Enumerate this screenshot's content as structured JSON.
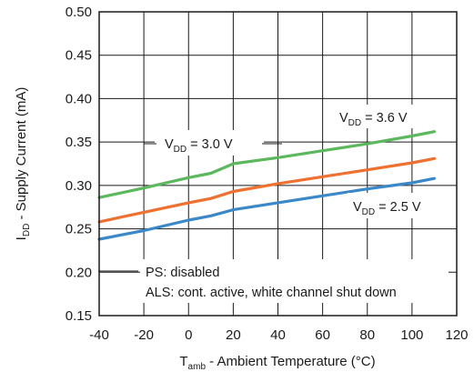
{
  "chart_data": {
    "type": "line",
    "x_axis": {
      "label_main": "T",
      "label_sub": "amb",
      "label_rest": " - Ambient Temperature (°C)",
      "ticks": [
        -40,
        -20,
        0,
        20,
        40,
        60,
        80,
        100,
        120
      ],
      "range": [
        -40,
        120
      ]
    },
    "y_axis": {
      "label_main": "I",
      "label_sub": "DD",
      "label_rest": " - Supply Current (mA)",
      "ticks": [
        0.15,
        0.2,
        0.25,
        0.3,
        0.35,
        0.4,
        0.45,
        0.5
      ],
      "tick_labels": [
        "0.15",
        "0.20",
        "0.25",
        "0.30",
        "0.35",
        "0.40",
        "0.45",
        "0.50"
      ],
      "range": [
        0.15,
        0.5
      ]
    },
    "grid": true,
    "series": [
      {
        "name_main": "V",
        "name_sub": "DD",
        "name_rest": " = 3.6 V",
        "color": "#5cb85c",
        "x": [
          -40,
          -20,
          0,
          10,
          20,
          40,
          60,
          80,
          100,
          110
        ],
        "y": [
          0.286,
          0.297,
          0.309,
          0.314,
          0.325,
          0.332,
          0.34,
          0.348,
          0.357,
          0.362
        ]
      },
      {
        "name_main": "V",
        "name_sub": "DD",
        "name_rest": " = 3.0 V",
        "color": "#f07030",
        "x": [
          -40,
          -20,
          0,
          10,
          20,
          40,
          60,
          80,
          100,
          110
        ],
        "y": [
          0.258,
          0.269,
          0.28,
          0.285,
          0.293,
          0.302,
          0.31,
          0.318,
          0.326,
          0.331
        ]
      },
      {
        "name_main": "V",
        "name_sub": "DD",
        "name_rest": " = 2.5 V",
        "color": "#3a88c8",
        "x": [
          -40,
          -20,
          0,
          10,
          20,
          40,
          60,
          80,
          100,
          110
        ],
        "y": [
          0.238,
          0.248,
          0.26,
          0.265,
          0.272,
          0.28,
          0.288,
          0.296,
          0.303,
          0.308
        ]
      }
    ],
    "annotations": {
      "note1": "PS: disabled",
      "note2": "ALS: cont. active, white channel shut down"
    }
  }
}
